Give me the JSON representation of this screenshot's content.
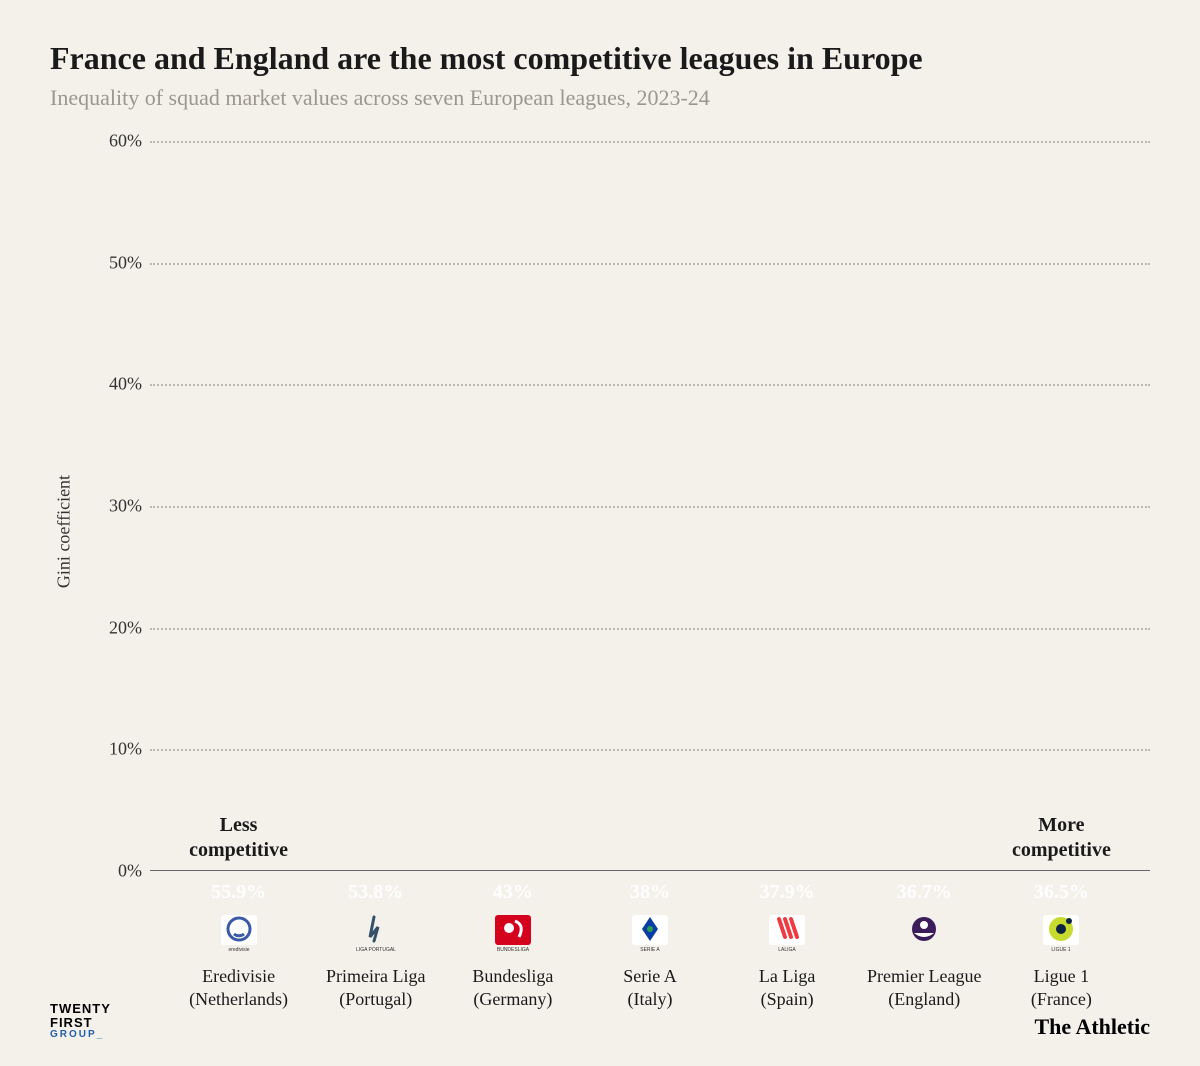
{
  "title": "France and England are the most competitive leagues in Europe",
  "subtitle": "Inequality of squad market values across seven European leagues, 2023-24",
  "chart": {
    "type": "bar",
    "y_axis_label": "Gini coefficient",
    "ylim": [
      0,
      60
    ],
    "ytick_step": 10,
    "y_tick_suffix": "%",
    "grid_color": "#bdb9b0",
    "background_color": "#f4f1ea",
    "bar_width_ratio": 0.78,
    "annotations": [
      {
        "text_lines": [
          "Less",
          "competitive"
        ],
        "bar_index": 0,
        "position": "above"
      },
      {
        "text_lines": [
          "More",
          "competitive"
        ],
        "bar_index": 6,
        "position": "above"
      }
    ],
    "bars": [
      {
        "league": "Eredivisie",
        "country": "(Netherlands)",
        "value": 55.9,
        "value_label": "55.9%",
        "color": "#e95a27",
        "icon_bg": "#ffffff",
        "icon_fg": "#3a5aa8",
        "icon_text": "eredivisie"
      },
      {
        "league": "Primeira Liga",
        "country": "(Portugal)",
        "value": 53.8,
        "value_label": "53.8%",
        "color": "#8a2b37",
        "icon_bg": "transparent",
        "icon_fg": "#35506b",
        "icon_text": "LIGA PORTUGAL"
      },
      {
        "league": "Bundesliga",
        "country": "(Germany)",
        "value": 43.0,
        "value_label": "43%",
        "color": "#ef5a5a",
        "icon_bg": "#d4021d",
        "icon_fg": "#ffffff",
        "icon_text": "BUNDESLIGA"
      },
      {
        "league": "Serie A",
        "country": "(Italy)",
        "value": 38.0,
        "value_label": "38%",
        "color": "#47a16f",
        "icon_bg": "#ffffff",
        "icon_fg": "#0a3da6",
        "icon_text": "SERIE A"
      },
      {
        "league": "La Liga",
        "country": "(Spain)",
        "value": 37.9,
        "value_label": "37.9%",
        "color": "#f4a52a",
        "icon_bg": "#ffffff",
        "icon_fg": "#ee3a43",
        "icon_text": "LALIGA"
      },
      {
        "league": "Premier League",
        "country": "(England)",
        "value": 36.7,
        "value_label": "36.7%",
        "color": "#2c2c53",
        "icon_bg": "transparent",
        "icon_fg": "#3a1d5a",
        "icon_text": ""
      },
      {
        "league": "Ligue 1",
        "country": "(France)",
        "value": 36.5,
        "value_label": "36.5%",
        "color": "#4c89bd",
        "icon_bg": "#ffffff",
        "icon_fg": "#c7da2e",
        "icon_text": "LIGUE 1"
      }
    ]
  },
  "footer": {
    "left_line1": "TWENTY",
    "left_line2": "FIRST",
    "left_sub": "GROUP_",
    "right": "The Athletic"
  }
}
